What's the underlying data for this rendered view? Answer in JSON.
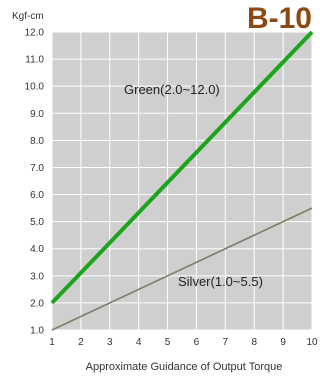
{
  "chart_data": {
    "type": "line",
    "title": "B-10",
    "unit_label": "Kgf-cm",
    "xlabel": "Approximate Guidance of Output Torque",
    "x": [
      1,
      10
    ],
    "xlim": [
      1,
      10
    ],
    "ylim": [
      1.0,
      12.0
    ],
    "x_ticks": [
      "1",
      "2",
      "3",
      "4",
      "5",
      "6",
      "7",
      "8",
      "9",
      "10"
    ],
    "y_ticks": [
      "1.0",
      "2.0",
      "3.0",
      "4.0",
      "5.0",
      "6.0",
      "7.0",
      "8.0",
      "9.0",
      "10.0",
      "11.0",
      "12.0"
    ],
    "grid": true,
    "series": [
      {
        "name": "Green(2.0~12.0)",
        "values": [
          2.0,
          12.0
        ],
        "color": "#1aa51a"
      },
      {
        "name": "Silver(1.0~5.5)",
        "values": [
          1.0,
          5.5
        ],
        "color": "#7d7d66"
      }
    ],
    "colors": {
      "plot_bg": "#cfcfcf",
      "grid": "#ffffff",
      "title": "#8a4a12"
    }
  }
}
